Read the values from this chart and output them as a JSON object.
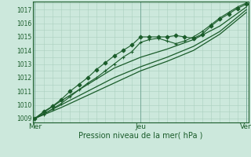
{
  "title": "",
  "xlabel": "Pression niveau de la mer( hPa )",
  "bg_color": "#cce8dc",
  "plot_bg_color": "#cce8dc",
  "grid_minor_color": "#aacfbf",
  "grid_major_color": "#aacfbf",
  "line_color": "#1a5c2a",
  "marker_color": "#1a5c2a",
  "yticks": [
    1009,
    1010,
    1011,
    1012,
    1013,
    1014,
    1015,
    1016,
    1017
  ],
  "ylim": [
    1008.7,
    1017.6
  ],
  "xtick_labels": [
    "Mer",
    "Jeu",
    "Ven"
  ],
  "xtick_positions": [
    0,
    48,
    96
  ],
  "xlim": [
    -1,
    97
  ],
  "series": [
    {
      "x": [
        0,
        4,
        8,
        12,
        16,
        20,
        24,
        28,
        32,
        36,
        40,
        44,
        48,
        52,
        56,
        60,
        64,
        68,
        72,
        76,
        80,
        84,
        88,
        92,
        96
      ],
      "y": [
        1009.0,
        1009.5,
        1009.9,
        1010.4,
        1011.0,
        1011.5,
        1012.0,
        1012.6,
        1013.1,
        1013.6,
        1014.0,
        1014.4,
        1015.0,
        1015.0,
        1015.0,
        1015.0,
        1015.1,
        1015.0,
        1014.9,
        1015.2,
        1015.8,
        1016.3,
        1016.7,
        1017.1,
        1017.4
      ],
      "marker": "D",
      "markersize": 2.5,
      "linewidth": 0.8
    },
    {
      "x": [
        0,
        4,
        8,
        12,
        16,
        20,
        24,
        28,
        32,
        36,
        40,
        44,
        48,
        52,
        56,
        60,
        64,
        68,
        72,
        76,
        80,
        84,
        88,
        92,
        96
      ],
      "y": [
        1009.0,
        1009.3,
        1009.7,
        1010.1,
        1010.6,
        1011.1,
        1011.6,
        1012.0,
        1012.5,
        1013.0,
        1013.5,
        1013.9,
        1014.6,
        1014.8,
        1014.9,
        1014.7,
        1014.5,
        1014.7,
        1015.0,
        1015.4,
        1015.9,
        1016.4,
        1016.8,
        1017.2,
        1017.5
      ],
      "marker": "+",
      "markersize": 3.5,
      "linewidth": 0.8
    },
    {
      "x": [
        0,
        12,
        24,
        36,
        48,
        60,
        72,
        84,
        96
      ],
      "y": [
        1009.0,
        1010.3,
        1011.5,
        1012.7,
        1013.5,
        1014.1,
        1014.8,
        1015.8,
        1017.2
      ],
      "marker": null,
      "markersize": 0,
      "linewidth": 0.9
    },
    {
      "x": [
        0,
        12,
        24,
        36,
        48,
        60,
        72,
        84,
        96
      ],
      "y": [
        1009.0,
        1010.0,
        1011.0,
        1012.0,
        1012.8,
        1013.5,
        1014.3,
        1015.4,
        1017.0
      ],
      "marker": null,
      "markersize": 0,
      "linewidth": 0.9
    },
    {
      "x": [
        0,
        12,
        24,
        36,
        48,
        60,
        72,
        84,
        96
      ],
      "y": [
        1009.0,
        1009.8,
        1010.7,
        1011.6,
        1012.5,
        1013.2,
        1014.0,
        1015.2,
        1016.8
      ],
      "marker": null,
      "markersize": 0,
      "linewidth": 0.9
    }
  ]
}
